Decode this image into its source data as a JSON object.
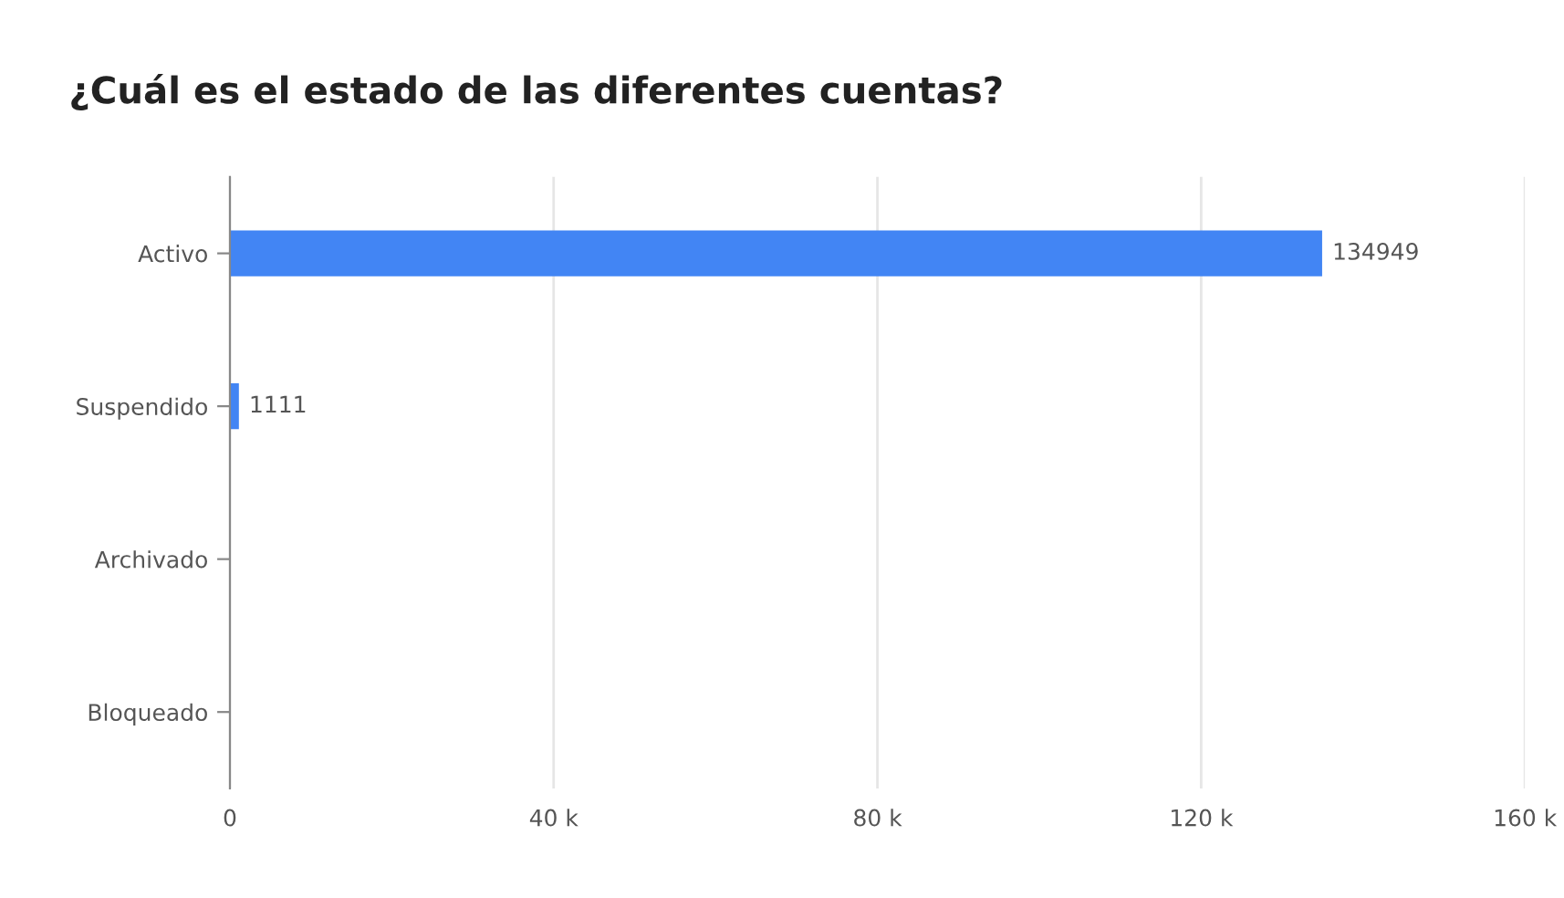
{
  "chart_data": {
    "type": "bar",
    "orientation": "horizontal",
    "title": "¿Cuál es el estado de las diferentes cuentas?",
    "categories": [
      "Activo",
      "Suspendido",
      "Archivado",
      "Bloqueado"
    ],
    "values": [
      134949,
      1111,
      null,
      null
    ],
    "value_labels": [
      "134949",
      "1111",
      null,
      null
    ],
    "color": "#4285f4",
    "xlim": [
      0,
      160000
    ],
    "xticks": [
      {
        "value": 0,
        "label": "0"
      },
      {
        "value": 40000,
        "label": "40 k"
      },
      {
        "value": 80000,
        "label": "80 k"
      },
      {
        "value": 120000,
        "label": "120 k"
      },
      {
        "value": 160000,
        "label": "160 k"
      }
    ],
    "grid": "x"
  }
}
